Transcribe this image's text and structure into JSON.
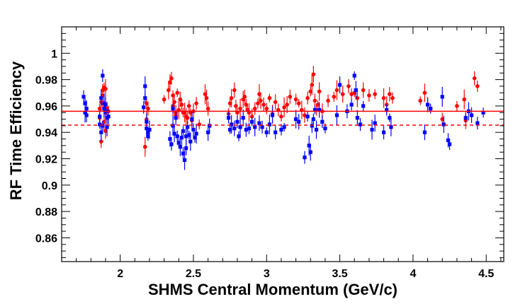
{
  "chart_data": {
    "type": "scatter",
    "title": "",
    "xlabel": "SHMS Central Momentum (GeV/c)",
    "ylabel": "RF Time Efficiency",
    "xlim": [
      1.6,
      4.62
    ],
    "ylim": [
      0.842,
      1.02
    ],
    "x_ticks": [
      "2",
      "2.5",
      "3",
      "3.5",
      "4",
      "4.5"
    ],
    "y_ticks": [
      "0.86",
      "0.88",
      "0.9",
      "0.92",
      "0.94",
      "0.96",
      "0.98",
      "1"
    ],
    "grid": false,
    "reference_lines": [
      {
        "y": 0.956,
        "style": "solid",
        "color": "#ff0000"
      },
      {
        "y": 0.9455,
        "style": "dashed",
        "color": "#ff0000"
      }
    ],
    "series": [
      {
        "marker": "circle",
        "color": "#ff0000",
        "x": [
          1.86,
          1.87,
          1.88,
          1.88,
          1.89,
          1.9,
          1.9,
          1.91,
          1.92,
          1.88,
          1.89,
          1.9,
          1.87,
          1.86,
          2.17,
          2.18,
          2.19,
          2.18,
          2.3,
          2.33,
          2.34,
          2.35,
          2.36,
          2.36,
          2.37,
          2.38,
          2.38,
          2.39,
          2.4,
          2.41,
          2.42,
          2.43,
          2.44,
          2.45,
          2.46,
          2.47,
          2.48,
          2.49,
          2.5,
          2.52,
          2.54,
          2.58,
          2.59,
          2.6,
          2.74,
          2.75,
          2.76,
          2.78,
          2.79,
          2.8,
          2.82,
          2.84,
          2.85,
          2.86,
          2.87,
          2.88,
          2.9,
          2.92,
          2.94,
          2.95,
          2.96,
          2.98,
          3.0,
          3.02,
          3.04,
          3.06,
          3.08,
          3.1,
          3.12,
          3.14,
          3.16,
          3.2,
          3.22,
          3.24,
          3.26,
          3.28,
          3.3,
          3.31,
          3.32,
          3.33,
          3.34,
          3.35,
          3.36,
          3.38,
          3.42,
          3.46,
          3.48,
          3.52,
          3.56,
          3.58,
          3.6,
          3.62,
          3.66,
          3.7,
          3.74,
          3.8,
          3.82,
          3.84,
          3.86,
          4.05,
          4.08,
          4.1,
          4.2,
          4.3,
          4.35,
          4.36,
          4.42,
          4.44
        ],
        "y": [
          0.951,
          0.963,
          0.968,
          0.972,
          0.974,
          0.973,
          0.955,
          0.958,
          0.956,
          0.962,
          0.948,
          0.941,
          0.933,
          0.958,
          0.929,
          0.95,
          0.958,
          0.962,
          0.965,
          0.972,
          0.978,
          0.981,
          0.968,
          0.96,
          0.963,
          0.955,
          0.953,
          0.97,
          0.957,
          0.965,
          0.961,
          0.955,
          0.955,
          0.952,
          0.951,
          0.96,
          0.955,
          0.949,
          0.956,
          0.962,
          0.946,
          0.969,
          0.966,
          0.958,
          0.954,
          0.962,
          0.966,
          0.972,
          0.96,
          0.955,
          0.958,
          0.965,
          0.967,
          0.961,
          0.957,
          0.955,
          0.952,
          0.958,
          0.962,
          0.969,
          0.964,
          0.961,
          0.958,
          0.966,
          0.954,
          0.963,
          0.957,
          0.952,
          0.959,
          0.961,
          0.967,
          0.965,
          0.962,
          0.957,
          0.953,
          0.966,
          0.971,
          0.976,
          0.984,
          0.964,
          0.957,
          0.961,
          0.971,
          0.956,
          0.964,
          0.967,
          0.972,
          0.969,
          0.975,
          0.969,
          0.97,
          0.966,
          0.972,
          0.968,
          0.969,
          0.966,
          0.961,
          0.969,
          0.966,
          0.964,
          0.97,
          0.961,
          0.95,
          0.96,
          0.965,
          0.949,
          0.981,
          0.975
        ]
      },
      {
        "marker": "square",
        "color": "#0000ff",
        "x": [
          1.75,
          1.76,
          1.76,
          1.77,
          1.77,
          1.86,
          1.86,
          1.87,
          1.87,
          1.88,
          1.88,
          1.89,
          1.89,
          1.9,
          1.9,
          1.91,
          1.91,
          1.92,
          2.16,
          2.17,
          2.17,
          2.18,
          2.18,
          2.19,
          2.19,
          2.2,
          2.34,
          2.35,
          2.36,
          2.36,
          2.37,
          2.38,
          2.39,
          2.4,
          2.41,
          2.42,
          2.43,
          2.43,
          2.44,
          2.45,
          2.45,
          2.46,
          2.47,
          2.48,
          2.49,
          2.5,
          2.51,
          2.52,
          2.6,
          2.61,
          2.74,
          2.75,
          2.76,
          2.78,
          2.8,
          2.81,
          2.82,
          2.84,
          2.86,
          2.88,
          2.9,
          2.92,
          2.95,
          2.97,
          3.0,
          3.02,
          3.04,
          3.06,
          3.1,
          3.12,
          3.2,
          3.22,
          3.26,
          3.28,
          3.29,
          3.3,
          3.31,
          3.32,
          3.33,
          3.34,
          3.36,
          3.38,
          3.4,
          3.48,
          3.5,
          3.55,
          3.58,
          3.6,
          3.61,
          3.62,
          3.64,
          3.66,
          3.72,
          3.74,
          3.8,
          3.82,
          3.84,
          3.85,
          4.08,
          4.1,
          4.12,
          4.2,
          4.21,
          4.24,
          4.25,
          4.36,
          4.38,
          4.4,
          4.44,
          4.48
        ],
        "y": [
          0.967,
          0.962,
          0.955,
          0.958,
          0.953,
          0.952,
          0.946,
          0.94,
          0.966,
          0.983,
          0.945,
          0.962,
          0.958,
          0.961,
          0.956,
          0.951,
          0.944,
          0.952,
          0.959,
          0.966,
          0.975,
          0.948,
          0.943,
          0.94,
          0.937,
          0.942,
          0.935,
          0.931,
          0.958,
          0.945,
          0.939,
          0.951,
          0.937,
          0.932,
          0.929,
          0.936,
          0.924,
          0.941,
          0.919,
          0.937,
          0.928,
          0.944,
          0.938,
          0.933,
          0.95,
          0.942,
          0.936,
          0.939,
          0.94,
          0.945,
          0.951,
          0.942,
          0.946,
          0.943,
          0.948,
          0.937,
          0.944,
          0.951,
          0.942,
          0.943,
          0.948,
          0.944,
          0.947,
          0.944,
          0.94,
          0.946,
          0.953,
          0.94,
          0.942,
          0.944,
          0.95,
          0.948,
          0.921,
          0.952,
          0.93,
          0.925,
          0.945,
          0.95,
          0.957,
          0.942,
          0.957,
          0.948,
          0.943,
          0.953,
          0.976,
          0.956,
          0.961,
          0.983,
          0.972,
          0.951,
          0.946,
          0.96,
          0.942,
          0.947,
          0.94,
          0.957,
          0.951,
          0.944,
          0.94,
          0.961,
          0.958,
          0.967,
          0.946,
          0.934,
          0.931,
          0.951,
          0.956,
          0.953,
          0.947,
          0.955
        ]
      }
    ]
  },
  "colors": {
    "series_red": "#ff0000",
    "series_blue": "#0000ff",
    "axis": "#000000",
    "background": "#ffffff"
  }
}
